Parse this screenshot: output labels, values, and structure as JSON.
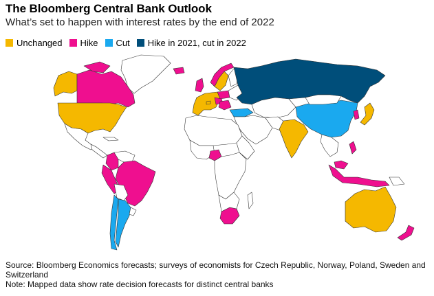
{
  "header": {
    "title": "The Bloomberg Central Bank Outlook",
    "subtitle": "What’s set to happen with interest rates by the end of 2022"
  },
  "legend": [
    {
      "label": "Unchanged",
      "color": "#f5b800"
    },
    {
      "label": "Hike",
      "color": "#ef0f8f"
    },
    {
      "label": "Cut",
      "color": "#1aa9ef"
    },
    {
      "label": "Hike in 2021, cut in 2022",
      "color": "#004e7a"
    }
  ],
  "colors": {
    "unchanged": "#f5b800",
    "hike": "#ef0f8f",
    "cut": "#1aa9ef",
    "hike_then_cut": "#004e7a",
    "no_data": "#ffffff",
    "border": "#333333"
  },
  "footer": {
    "source": "Source: Bloomberg Economics forecasts; surveys of economists for Czech Republic, Norway, Poland, Sweden and Switzerland",
    "note": "Note: Mapped data show rate decision forecasts for distinct central banks"
  }
}
